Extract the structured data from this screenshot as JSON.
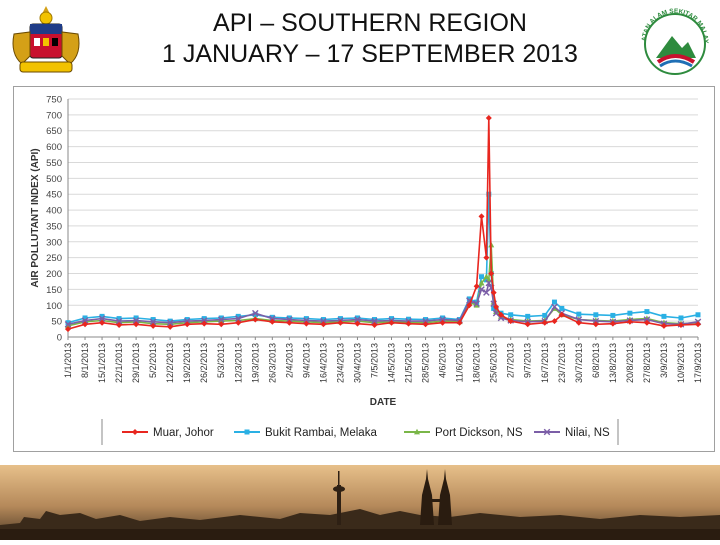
{
  "header": {
    "title_line1": "API – SOUTHERN REGION",
    "title_line2": "1 JANUARY – 17 SEPTEMBER 2013"
  },
  "logos": {
    "left": "coat-of-arms-logo",
    "right": "department-of-environment-logo",
    "right_text": "JABATAN ALAM SEKITAR MALAYSIA"
  },
  "chart_data": {
    "type": "line",
    "ylabel": "AIR POLLUTANT INDEX (API)",
    "xlabel": "DATE",
    "ylim": [
      0,
      750
    ],
    "yticks": [
      0,
      50,
      100,
      150,
      200,
      250,
      300,
      350,
      400,
      450,
      500,
      550,
      600,
      650,
      700,
      750
    ],
    "grid": true,
    "legend_position": "bottom",
    "x_tick_labels": [
      "1/1/2013",
      "8/1/2013",
      "15/1/2013",
      "22/1/2013",
      "29/1/2013",
      "5/2/2013",
      "12/2/2013",
      "19/2/2013",
      "26/2/2013",
      "5/3/2013",
      "12/3/2013",
      "19/3/2013",
      "26/3/2013",
      "2/4/2013",
      "9/4/2013",
      "16/4/2013",
      "23/4/2013",
      "30/4/2013",
      "7/5/2013",
      "14/5/2013",
      "21/5/2013",
      "28/5/2013",
      "4/6/2013",
      "11/6/2013",
      "18/6/2013",
      "25/6/2013",
      "2/7/2013",
      "9/7/2013",
      "16/7/2013",
      "23/7/2013",
      "30/7/2013",
      "6/8/2013",
      "13/8/2013",
      "20/8/2013",
      "27/8/2013",
      "3/9/2013",
      "10/9/2013",
      "17/9/2013"
    ],
    "x": [
      "1/1/2013",
      "8/1/2013",
      "15/1/2013",
      "22/1/2013",
      "29/1/2013",
      "5/2/2013",
      "12/2/2013",
      "19/2/2013",
      "26/2/2013",
      "5/3/2013",
      "12/3/2013",
      "19/3/2013",
      "26/3/2013",
      "2/4/2013",
      "9/4/2013",
      "16/4/2013",
      "23/4/2013",
      "30/4/2013",
      "7/5/2013",
      "14/5/2013",
      "21/5/2013",
      "28/5/2013",
      "4/6/2013",
      "11/6/2013",
      "15/6/2013",
      "18/6/2013",
      "20/6/2013",
      "22/6/2013",
      "23/6/2013",
      "24/6/2013",
      "25/6/2013",
      "26/6/2013",
      "28/6/2013",
      "2/7/2013",
      "9/7/2013",
      "16/7/2013",
      "20/7/2013",
      "23/7/2013",
      "30/7/2013",
      "6/8/2013",
      "13/8/2013",
      "20/8/2013",
      "27/8/2013",
      "3/9/2013",
      "10/9/2013",
      "17/9/2013"
    ],
    "series": [
      {
        "name": "Muar, Johor",
        "color": "#e8261f",
        "marker": "diamond",
        "values": [
          25,
          40,
          45,
          38,
          40,
          35,
          32,
          40,
          42,
          40,
          45,
          55,
          48,
          45,
          42,
          40,
          45,
          42,
          38,
          45,
          42,
          40,
          45,
          45,
          100,
          160,
          380,
          250,
          690,
          200,
          140,
          95,
          70,
          50,
          40,
          45,
          50,
          70,
          45,
          40,
          42,
          48,
          45,
          35,
          38,
          40
        ]
      },
      {
        "name": "Bukit Rambai, Melaka",
        "color": "#2ab0e4",
        "marker": "square",
        "values": [
          45,
          60,
          65,
          58,
          60,
          55,
          50,
          55,
          58,
          60,
          65,
          70,
          62,
          60,
          58,
          55,
          58,
          60,
          55,
          58,
          56,
          55,
          60,
          55,
          120,
          110,
          190,
          180,
          450,
          200,
          90,
          85,
          75,
          70,
          65,
          68,
          110,
          90,
          72,
          70,
          68,
          75,
          80,
          65,
          60,
          70
        ]
      },
      {
        "name": "Port Dickson, NS",
        "color": "#7ab648",
        "marker": "triangle",
        "values": [
          35,
          48,
          52,
          45,
          48,
          42,
          40,
          45,
          48,
          50,
          52,
          58,
          52,
          50,
          48,
          45,
          48,
          50,
          45,
          48,
          46,
          45,
          50,
          48,
          110,
          100,
          170,
          190,
          180,
          290,
          110,
          80,
          65,
          55,
          50,
          52,
          90,
          70,
          55,
          52,
          50,
          55,
          58,
          45,
          42,
          45
        ]
      },
      {
        "name": "Nilai, NS",
        "color": "#7b5ea7",
        "marker": "x",
        "values": [
          40,
          52,
          58,
          50,
          52,
          48,
          45,
          50,
          52,
          55,
          58,
          75,
          58,
          55,
          52,
          50,
          52,
          55,
          50,
          52,
          50,
          50,
          55,
          52,
          115,
          105,
          150,
          140,
          170,
          155,
          105,
          75,
          60,
          52,
          48,
          50,
          95,
          75,
          55,
          50,
          48,
          52,
          55,
          42,
          40,
          48
        ]
      }
    ]
  }
}
